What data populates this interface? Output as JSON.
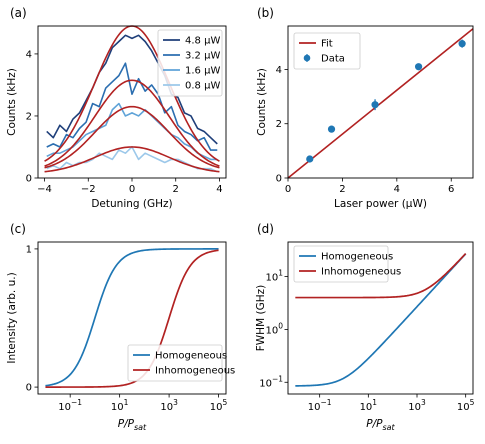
{
  "panels": {
    "a": "(a)",
    "b": "(b)",
    "c": "(c)",
    "d": "(d)"
  },
  "colors": {
    "dark_navy": "#1f3f7a",
    "medium_blue": "#2b6eb0",
    "light_blue": "#5fa3d8",
    "lighter_blue": "#9cc8ea",
    "fit_red": "#b22222",
    "homogeneous_blue": "#1f77b4",
    "inhomogeneous_red": "#b22222"
  },
  "chart_data": [
    {
      "id": "a",
      "type": "line",
      "xlabel": "Detuning (GHz)",
      "ylabel": "Counts (kHz)",
      "xlim": [
        -4.3,
        4.3
      ],
      "ylim": [
        0,
        4.9
      ],
      "xticks": [
        -4,
        -2,
        0,
        2,
        4
      ],
      "xtick_labels": [
        "−4",
        "−2",
        "0",
        "2",
        "4"
      ],
      "yticks": [
        0,
        2,
        4
      ],
      "grid": false,
      "legend_position": "top-right",
      "series": [
        {
          "name": "4.8 μW",
          "color_key": "dark_navy",
          "x": [
            -3.9,
            -3.6,
            -3.3,
            -3.0,
            -2.7,
            -2.4,
            -2.1,
            -1.8,
            -1.5,
            -1.2,
            -0.9,
            -0.6,
            -0.3,
            0.0,
            0.3,
            0.6,
            0.9,
            1.2,
            1.5,
            1.8,
            2.1,
            2.4,
            2.7,
            3.0,
            3.3,
            3.6,
            3.9
          ],
          "y": [
            1.5,
            1.3,
            1.7,
            1.5,
            1.9,
            2.1,
            2.5,
            2.9,
            3.4,
            3.7,
            4.2,
            4.4,
            4.6,
            4.5,
            4.6,
            4.4,
            4.1,
            3.7,
            3.3,
            2.7,
            2.6,
            2.1,
            2.0,
            1.6,
            1.5,
            1.3,
            1.1
          ]
        },
        {
          "name": "3.2 μW",
          "color_key": "medium_blue",
          "x": [
            -3.9,
            -3.6,
            -3.3,
            -3.0,
            -2.7,
            -2.4,
            -2.1,
            -1.8,
            -1.5,
            -1.2,
            -0.9,
            -0.6,
            -0.3,
            0.0,
            0.3,
            0.6,
            0.9,
            1.2,
            1.5,
            1.8,
            2.1,
            2.4,
            2.7,
            3.0,
            3.3,
            3.6,
            3.9
          ],
          "y": [
            1.0,
            1.1,
            1.0,
            1.4,
            1.3,
            1.6,
            1.8,
            2.4,
            2.3,
            2.9,
            3.1,
            3.3,
            3.7,
            2.7,
            3.2,
            2.8,
            3.0,
            2.7,
            2.1,
            2.3,
            1.7,
            1.5,
            1.4,
            1.2,
            1.3,
            0.9,
            0.9
          ]
        },
        {
          "name": "1.6 μW",
          "color_key": "light_blue",
          "x": [
            -3.9,
            -3.6,
            -3.3,
            -3.0,
            -2.7,
            -2.4,
            -2.1,
            -1.8,
            -1.5,
            -1.2,
            -0.9,
            -0.6,
            -0.3,
            0.0,
            0.3,
            0.6,
            0.9,
            1.2,
            1.5,
            1.8,
            2.1,
            2.4,
            2.7,
            3.0,
            3.3,
            3.6,
            3.9
          ],
          "y": [
            0.7,
            0.8,
            0.8,
            0.9,
            1.0,
            1.2,
            1.4,
            1.5,
            1.6,
            1.7,
            2.2,
            2.4,
            2.0,
            2.1,
            2.0,
            2.2,
            2.0,
            1.8,
            1.6,
            1.4,
            1.3,
            1.1,
            1.0,
            0.8,
            0.7,
            0.6,
            0.6
          ]
        },
        {
          "name": "0.8 μW",
          "color_key": "lighter_blue",
          "x": [
            -3.9,
            -3.6,
            -3.3,
            -3.0,
            -2.7,
            -2.4,
            -2.1,
            -1.8,
            -1.5,
            -1.2,
            -0.9,
            -0.6,
            -0.3,
            0.0,
            0.3,
            0.6,
            0.9,
            1.2,
            1.5,
            1.8,
            2.1,
            2.4,
            2.7,
            3.0,
            3.3,
            3.6,
            3.9
          ],
          "y": [
            0.3,
            0.4,
            0.3,
            0.5,
            0.4,
            0.5,
            0.5,
            0.6,
            0.8,
            0.7,
            0.6,
            0.9,
            0.8,
            1.0,
            0.6,
            0.8,
            0.7,
            0.6,
            0.5,
            0.6,
            0.6,
            0.5,
            0.4,
            0.3,
            0.3,
            0.3,
            0.2
          ]
        }
      ],
      "fits": [
        {
          "amplitude": 4.65,
          "offset": 0.25,
          "fwhm_ghz": 4.0
        },
        {
          "amplitude": 2.95,
          "offset": 0.2,
          "fwhm_ghz": 4.0
        },
        {
          "amplitude": 2.1,
          "offset": 0.2,
          "fwhm_ghz": 4.0
        },
        {
          "amplitude": 0.85,
          "offset": 0.15,
          "fwhm_ghz": 4.0
        }
      ]
    },
    {
      "id": "b",
      "type": "scatter",
      "xlabel": "Laser power (μW)",
      "ylabel": "Counts (kHz)",
      "xlim": [
        0,
        6.8
      ],
      "ylim": [
        0,
        5.6
      ],
      "xticks": [
        0,
        2,
        4,
        6
      ],
      "yticks": [
        0,
        2,
        4
      ],
      "grid": false,
      "legend_position": "top-left",
      "series": [
        {
          "name": "Fit",
          "kind": "line",
          "color_key": "fit_red",
          "x": [
            0,
            6.8
          ],
          "y": [
            0,
            5.5
          ]
        },
        {
          "name": "Data",
          "kind": "errorbar",
          "color_key": "homogeneous_blue",
          "x": [
            0.8,
            1.6,
            3.2,
            4.8,
            6.4
          ],
          "y": [
            0.7,
            1.8,
            2.7,
            4.1,
            4.95
          ],
          "yerr": [
            0.1,
            0.05,
            0.2,
            0.08,
            0.15
          ]
        }
      ]
    },
    {
      "id": "c",
      "type": "line",
      "xlabel": "P/P_sat",
      "ylabel": "Intensity (arb. u.)",
      "xscale": "log",
      "xlim": [
        0.005,
        200000
      ],
      "ylim": [
        -0.05,
        1.05
      ],
      "xticks": [
        0.1,
        10,
        1000,
        100000
      ],
      "yticks": [
        0,
        1
      ],
      "grid": false,
      "legend_position": "lower-right",
      "series": [
        {
          "name": "Homogeneous",
          "color_key": "homogeneous_blue",
          "model": "s/(1+s)"
        },
        {
          "name": "Inhomogeneous",
          "color_key": "inhomogeneous_red",
          "model": "s/(1+s)",
          "x_scale_factor": 1000
        }
      ]
    },
    {
      "id": "d",
      "type": "line",
      "xlabel": "P/P_sat",
      "ylabel": "FWHM (GHz)",
      "xscale": "log",
      "yscale": "log",
      "xlim": [
        0.005,
        200000
      ],
      "ylim": [
        0.06,
        45
      ],
      "xticks": [
        0.1,
        10,
        1000,
        100000
      ],
      "yticks": [
        0.1,
        1,
        10
      ],
      "grid": false,
      "legend_position": "top-left",
      "series": [
        {
          "name": "Homogeneous",
          "color_key": "homogeneous_blue",
          "model": "w0*sqrt(1+s)",
          "w0": 0.085
        },
        {
          "name": "Inhomogeneous",
          "color_key": "inhomogeneous_red",
          "model": "sqrt(inh^2+hom^2)",
          "inh": 4.0,
          "w0": 0.085
        }
      ]
    }
  ],
  "tick_text": {
    "log_ticks": [
      "10",
      "10",
      "10",
      "10"
    ],
    "log_exps": [
      "−1",
      "1",
      "3",
      "5"
    ],
    "d_y_exps": [
      "−1",
      "0",
      "1"
    ]
  },
  "labels": {
    "p_sat_main": "P/P",
    "p_sat_sub": "sat"
  }
}
